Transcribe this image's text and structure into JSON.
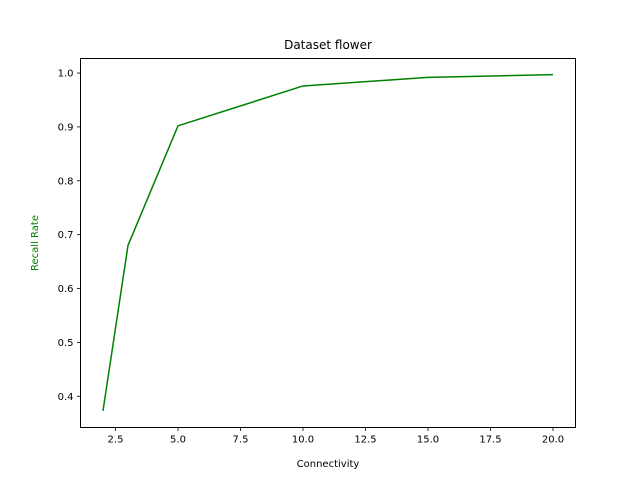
{
  "chart_data": {
    "type": "line",
    "title": "Dataset flower",
    "xlabel": "Connectivity",
    "ylabel": "Recall Rate",
    "ylabel_color": "#008000",
    "xlim": [
      1.1,
      20.9
    ],
    "ylim": [
      0.342,
      1.027
    ],
    "xticks": [
      2.5,
      5.0,
      7.5,
      10.0,
      12.5,
      15.0,
      17.5,
      20.0
    ],
    "xtick_labels": [
      "2.5",
      "5.0",
      "7.5",
      "10.0",
      "12.5",
      "15.0",
      "17.5",
      "20.0"
    ],
    "yticks": [
      0.4,
      0.5,
      0.6,
      0.7,
      0.8,
      0.9,
      1.0
    ],
    "ytick_labels": [
      "0.4",
      "0.5",
      "0.6",
      "0.7",
      "0.8",
      "0.9",
      "1.0"
    ],
    "grid": false,
    "series": [
      {
        "color": "#008000",
        "x": [
          2,
          3,
          5,
          10,
          15,
          20
        ],
        "y": [
          0.373,
          0.68,
          0.902,
          0.976,
          0.992,
          0.997
        ]
      }
    ]
  }
}
